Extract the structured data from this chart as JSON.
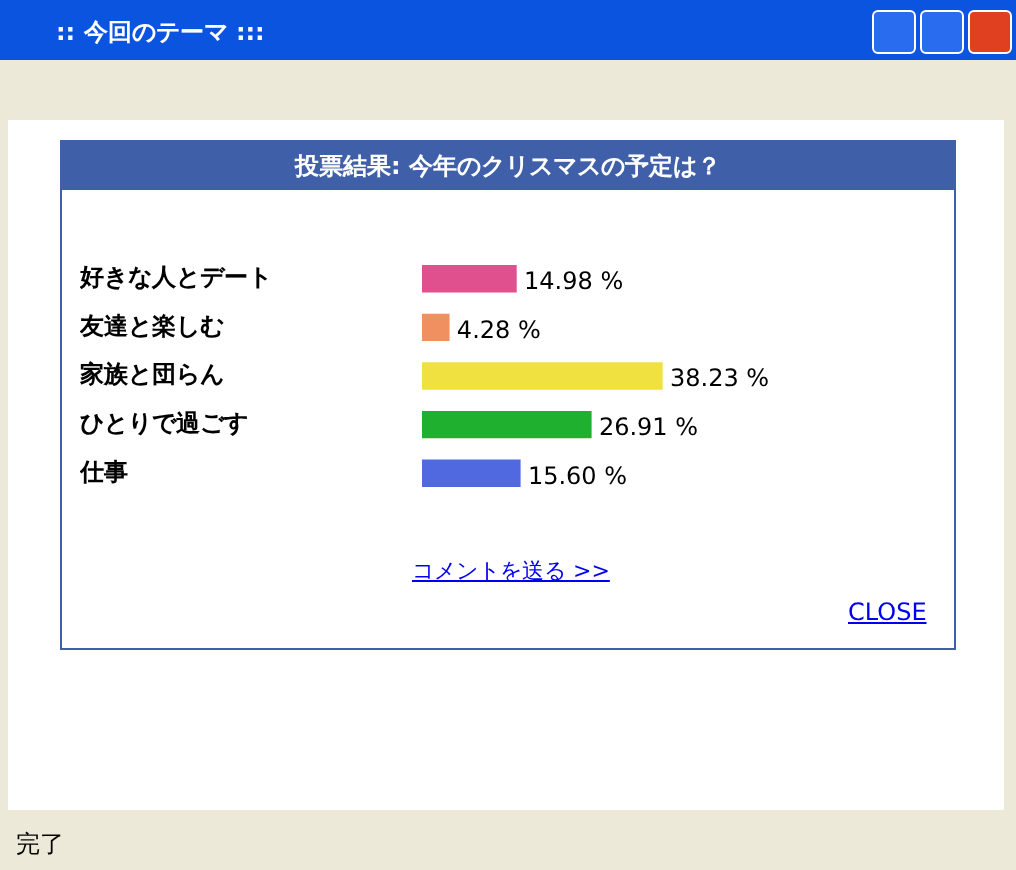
{
  "chart_data": {
    "type": "bar",
    "orientation": "horizontal",
    "title": "投票結果: 今年のクリスマスの予定は？",
    "categories": [
      "好きな人とデート",
      "友達と楽しむ",
      "家族と団らん",
      "ひとりで過ごす",
      "仕事"
    ],
    "values": [
      14.98,
      4.28,
      38.23,
      26.91,
      15.6
    ],
    "colors": [
      "#e0508f",
      "#f09060",
      "#f0e040",
      "#20b030",
      "#5068e0"
    ],
    "value_labels": [
      "14.98 %",
      "4.28 %",
      "38.23 %",
      "26.91 %",
      "15.60 %"
    ],
    "tick_labels": "y",
    "legend": false,
    "annotations": [
      ":: 今回のテーマ :::",
      "完了",
      "コメントを送る >>",
      "CLOSE"
    ]
  }
}
